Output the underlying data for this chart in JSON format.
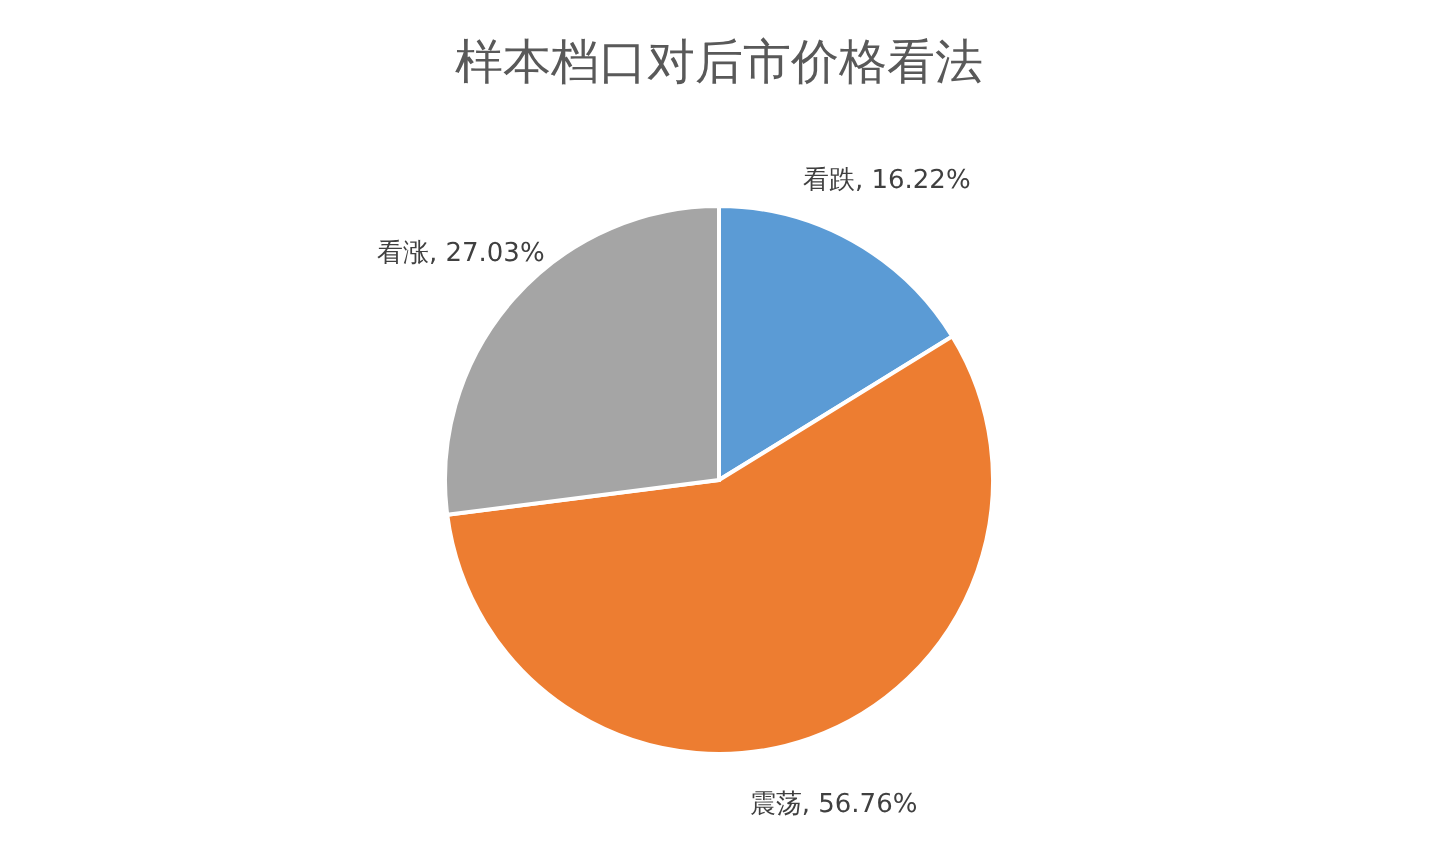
{
  "chart_data": {
    "type": "pie",
    "title": "样本档口对后市价格看法",
    "categories": [
      "看跌",
      "震荡",
      "看涨"
    ],
    "values": [
      16.22,
      56.76,
      27.03
    ],
    "colors": [
      "#5b9bd5",
      "#ed7d31",
      "#a5a5a5"
    ],
    "value_labels": [
      "16.22%",
      "56.76%",
      "27.03%"
    ],
    "legend": false
  }
}
